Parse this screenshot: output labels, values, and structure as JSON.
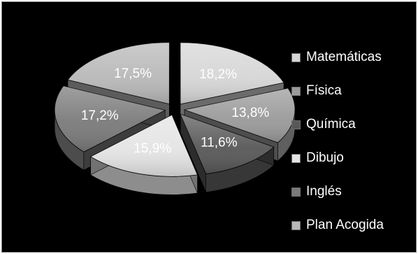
{
  "chart_data": {
    "type": "pie",
    "title": "",
    "legend_position": "right",
    "slices": [
      {
        "label": "Matemáticas",
        "value": 18.2,
        "value_label": "18,2%",
        "color": "#d6d6d6"
      },
      {
        "label": "Física",
        "value": 13.8,
        "value_label": "13,8%",
        "color": "#9a9a9a"
      },
      {
        "label": "Química",
        "value": 11.6,
        "value_label": "11,6%",
        "color": "#585858"
      },
      {
        "label": "Dibujo",
        "value": 15.9,
        "value_label": "15,9%",
        "color": "#e4e4e4"
      },
      {
        "label": "Inglés",
        "value": 17.2,
        "value_label": "17,2%",
        "color": "#7a7a7a"
      },
      {
        "label": "Plan Acogida",
        "value": 17.5,
        "value_label": "17,5%",
        "color": "#b8b8b8"
      }
    ]
  }
}
